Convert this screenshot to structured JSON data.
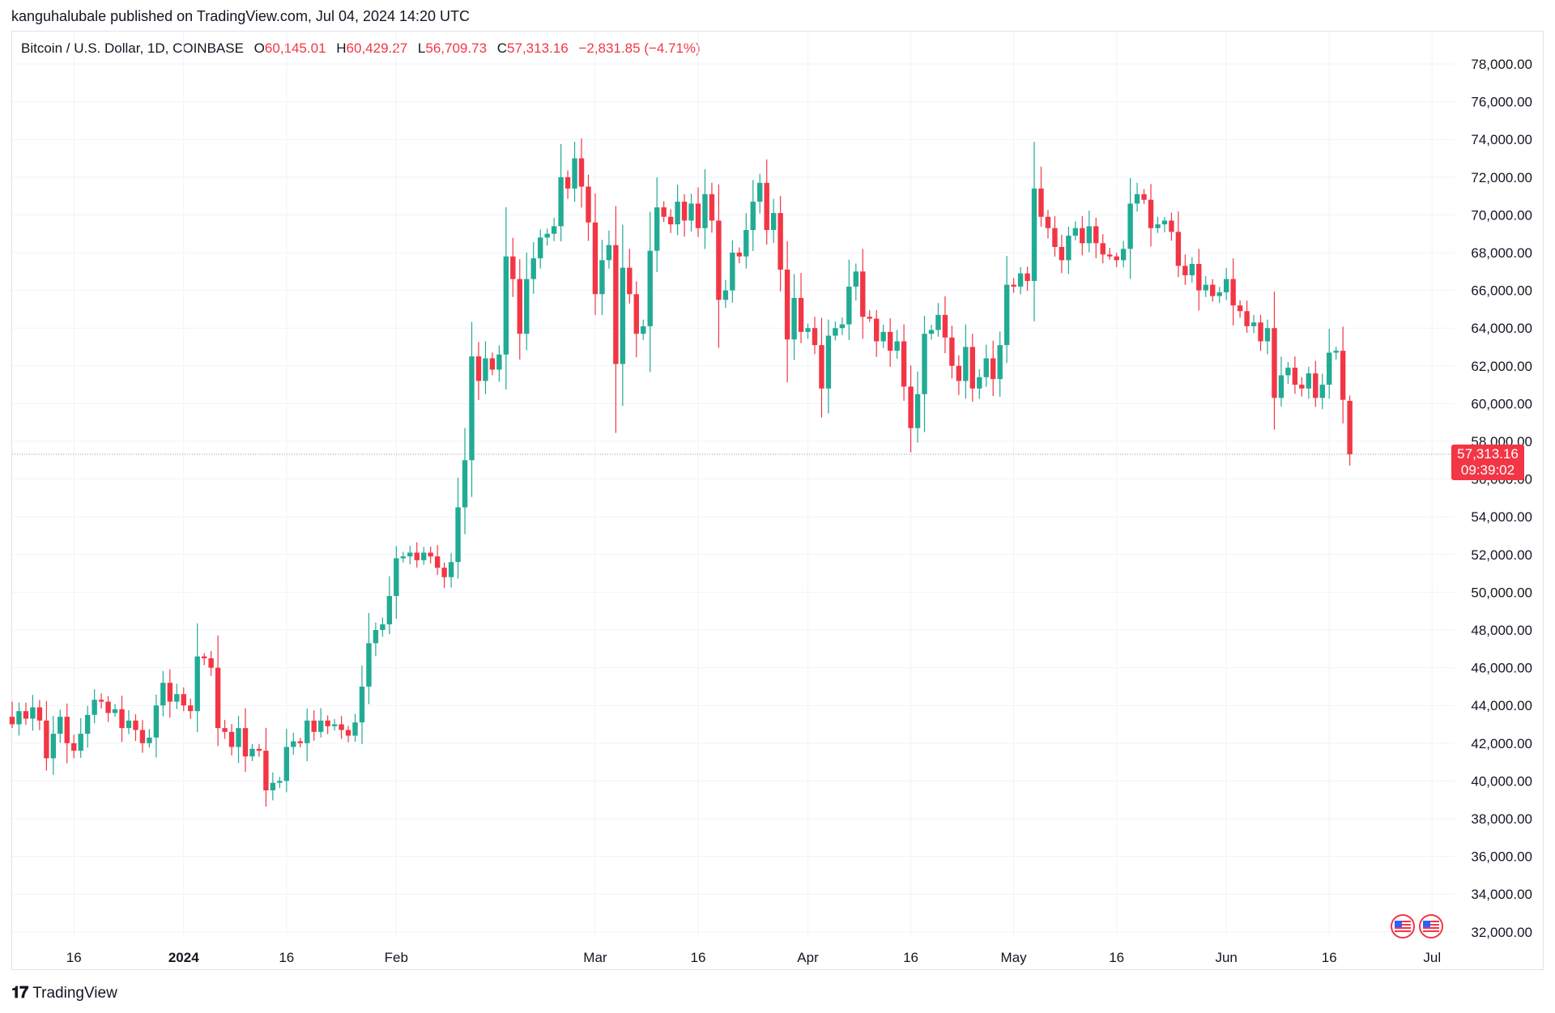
{
  "header": {
    "published": "kanguhalubale published on TradingView.com, Jul 04, 2024 14:20 UTC"
  },
  "legend": {
    "symbol": "Bitcoin / U.S. Dollar, 1D, COINBASE",
    "o_label": "O",
    "o_value": "60,145.01",
    "h_label": "H",
    "h_value": "60,429.27",
    "l_label": "L",
    "l_value": "56,709.73",
    "c_label": "C",
    "c_value": "57,313.16",
    "change": "−2,831.85 (−4.71%)"
  },
  "price_tag": {
    "price": "57,313.16",
    "countdown": "09:39:02"
  },
  "footer": {
    "brand": "TradingView"
  },
  "colors": {
    "up": "#22ab94",
    "down": "#f23645",
    "grid": "#f0f3fa",
    "axis_text": "#131722"
  },
  "chart_data": {
    "type": "candlestick",
    "title": "Bitcoin / U.S. Dollar, 1D, COINBASE",
    "y_range": [
      31000,
      79000
    ],
    "y_ticks": [
      32000,
      34000,
      36000,
      38000,
      40000,
      42000,
      44000,
      46000,
      48000,
      50000,
      52000,
      54000,
      56000,
      58000,
      60000,
      62000,
      64000,
      66000,
      68000,
      70000,
      72000,
      74000,
      76000,
      78000
    ],
    "y_tick_labels": [
      "32,000.00",
      "34,000.00",
      "36,000.00",
      "38,000.00",
      "40,000.00",
      "42,000.00",
      "44,000.00",
      "46,000.00",
      "48,000.00",
      "50,000.00",
      "52,000.00",
      "54,000.00",
      "56,000.00",
      "58,000.00",
      "60,000.00",
      "62,000.00",
      "64,000.00",
      "66,000.00",
      "68,000.00",
      "70,000.00",
      "72,000.00",
      "74,000.00",
      "76,000.00",
      "78,000.00"
    ],
    "x_range": [
      "2023-12-07",
      "2024-07-09"
    ],
    "x_ticks": [
      {
        "label": "16",
        "date": "2023-12-16",
        "bold": false
      },
      {
        "label": "2024",
        "date": "2024-01-01",
        "bold": true
      },
      {
        "label": "16",
        "date": "2024-01-16",
        "bold": false
      },
      {
        "label": "Feb",
        "date": "2024-02-01",
        "bold": false
      },
      {
        "label": "Mar",
        "date": "2024-03-01",
        "bold": false
      },
      {
        "label": "16",
        "date": "2024-03-16",
        "bold": false
      },
      {
        "label": "Apr",
        "date": "2024-04-01",
        "bold": false
      },
      {
        "label": "16",
        "date": "2024-04-16",
        "bold": false
      },
      {
        "label": "May",
        "date": "2024-05-01",
        "bold": false
      },
      {
        "label": "16",
        "date": "2024-05-16",
        "bold": false
      },
      {
        "label": "Jun",
        "date": "2024-06-01",
        "bold": false
      },
      {
        "label": "16",
        "date": "2024-06-16",
        "bold": false
      },
      {
        "label": "Jul",
        "date": "2024-07-01",
        "bold": false
      }
    ],
    "last_price": 57313.16,
    "closes": [
      43000,
      43700,
      43300,
      43900,
      43200,
      41200,
      42500,
      43400,
      42000,
      41600,
      42500,
      43500,
      44300,
      44200,
      43600,
      43800,
      42800,
      43200,
      42700,
      42000,
      42300,
      44000,
      45200,
      44200,
      44600,
      44000,
      43700,
      46600,
      46500,
      46000,
      42800,
      42600,
      41800,
      42800,
      41300,
      41700,
      41600,
      39500,
      39900,
      40000,
      41800,
      42100,
      42000,
      43200,
      42600,
      43200,
      42900,
      43000,
      42700,
      42400,
      43100,
      45000,
      47300,
      48000,
      48300,
      49800,
      51800,
      51900,
      52100,
      51700,
      52100,
      51900,
      51300,
      50800,
      51600,
      54500,
      57000,
      62500,
      61200,
      62400,
      61800,
      62600,
      67800,
      66600,
      63700,
      66600,
      67700,
      68800,
      69000,
      69400,
      72000,
      71400,
      73000,
      71500,
      69600,
      65800,
      67600,
      68400,
      62100,
      67200,
      65800,
      63700,
      64100,
      68100,
      70400,
      69900,
      69500,
      70700,
      69700,
      70600,
      69300,
      71100,
      69700,
      65500,
      66000,
      68000,
      67800,
      69200,
      70700,
      71700,
      69200,
      70100,
      67100,
      63400,
      65600,
      63800,
      64000,
      63100,
      60800,
      63600,
      64000,
      64200,
      66200,
      67000,
      64600,
      64500,
      63300,
      63800,
      62800,
      63300,
      60900,
      58700,
      60500,
      63700,
      63900,
      64700,
      63500,
      62000,
      61200,
      63000,
      60800,
      61400,
      62400,
      61300,
      63100,
      66300,
      66200,
      66900,
      66500,
      71400,
      69900,
      69300,
      68300,
      67600,
      68900,
      69300,
      68500,
      69400,
      68500,
      67900,
      67800,
      67600,
      68200,
      70600,
      71100,
      70800,
      69300,
      69500,
      69700,
      69100,
      67300,
      66800,
      67400,
      66000,
      66300,
      65700,
      65900,
      66600,
      65200,
      64900,
      64100,
      64300,
      63300,
      64000,
      60300,
      61500,
      61900,
      61000,
      60800,
      61600,
      60300,
      61000,
      62700,
      62800,
      60200,
      57313
    ],
    "ohlc_days": [
      {
        "date": "2023-12-07",
        "o": 43400,
        "h": 44200,
        "l": 42800,
        "c": 43000
      },
      {
        "date": "2024-07-04",
        "o": 60145.01,
        "h": 60429.27,
        "l": 56709.73,
        "c": 57313.16
      }
    ]
  }
}
